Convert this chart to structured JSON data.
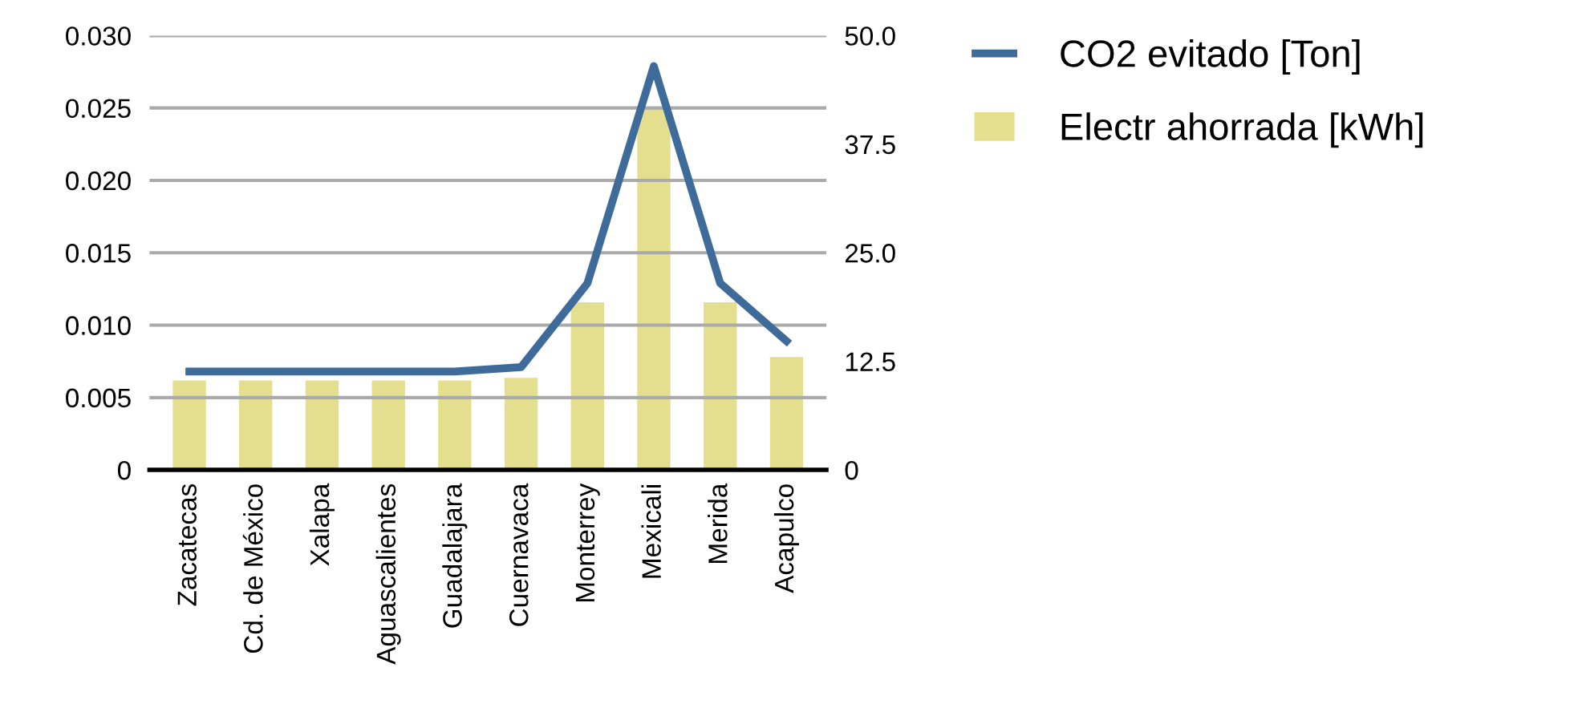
{
  "chart_data": {
    "type": "bar",
    "categories": [
      "Zacatecas",
      "Cd. de México",
      "Xalapa",
      "Aguascalientes",
      "Guadalajara",
      "Cuernavaca",
      "Monterrey",
      "Mexicali",
      "Merida",
      "Acapulco"
    ],
    "series": [
      {
        "name": "CO2 evitado [Ton]",
        "type": "line",
        "color": "#3f6b9b",
        "values": [
          0.0068,
          0.0068,
          0.0068,
          0.0068,
          0.0068,
          0.0071,
          0.0129,
          0.0279,
          0.0129,
          0.0089
        ]
      },
      {
        "name": "Electr ahorrada [kWh]",
        "axis": "y2",
        "color": "#e3df8e",
        "values": [
          10.3,
          10.3,
          10.3,
          10.3,
          10.3,
          10.6,
          19.3,
          41.7,
          19.3,
          13.0
        ]
      }
    ],
    "ylim": [
      0,
      0.03
    ],
    "yticks": [
      0,
      {
        "value": 0.005,
        "label": "0.005"
      },
      {
        "value": 0.01,
        "label": "0.010"
      },
      {
        "value": 0.015,
        "label": "0.015"
      },
      {
        "value": 0.02,
        "label": "0.020"
      },
      {
        "value": 0.025,
        "label": "0.025"
      },
      {
        "value": 0.03,
        "label": "0.030"
      }
    ],
    "y2lim": [
      0,
      50
    ],
    "y2ticks": [
      0,
      {
        "value": 12.5,
        "label": "12.5"
      },
      {
        "value": 25,
        "label": "25.0"
      },
      {
        "value": 37.5,
        "label": "37.5"
      },
      {
        "value": 50,
        "label": "50.0"
      }
    ],
    "grid": "y",
    "legend": "top right",
    "marker": "none",
    "line_style": "solid"
  }
}
